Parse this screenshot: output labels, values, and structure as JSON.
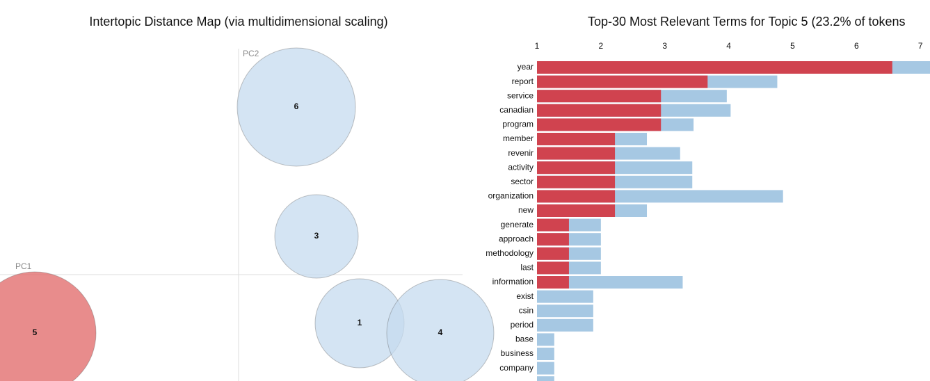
{
  "chart_data": [
    {
      "type": "bubble",
      "title": "Intertopic Distance Map (via multidimensional scaling)",
      "xlabel": "PC1",
      "ylabel": "PC2",
      "labels": [
        "6",
        "3",
        "5",
        "1",
        "4"
      ],
      "x": [
        83,
        112,
        -293,
        174,
        290
      ],
      "values": [
        241,
        55,
        -84,
        -70,
        -84
      ],
      "sizes": [
        85,
        60,
        88,
        64,
        77
      ],
      "colors": [
        "#c6dbef",
        "#c6dbef",
        "#e06666",
        "#c6dbef",
        "#c6dbef"
      ],
      "xlim": [
        -343,
        322
      ],
      "ylim": [
        -153,
        395
      ]
    },
    {
      "type": "hbar",
      "title": "Top-30 Most Relevant Terms for Topic 5 (23.2% of tokens",
      "categories": [
        "year",
        "report",
        "service",
        "canadian",
        "program",
        "member",
        "revenir",
        "activity",
        "sector",
        "organization",
        "new",
        "generate",
        "approach",
        "methodology",
        "last",
        "information",
        "exist",
        "csin",
        "period",
        "base",
        "business",
        "company",
        null
      ],
      "series": [
        {
          "color": "#a6c8e3",
          "values": [
            7.3,
            4.76,
            3.97,
            4.03,
            3.45,
            2.72,
            3.24,
            3.43,
            3.43,
            4.85,
            2.72,
            2.0,
            2.0,
            2.0,
            2.0,
            3.28,
            1.88,
            1.88,
            1.88,
            1.27,
            1.27,
            1.27,
            1.27
          ]
        },
        {
          "color": "#d0434f",
          "values": [
            6.56,
            3.67,
            2.94,
            2.94,
            2.94,
            2.22,
            2.22,
            2.22,
            2.22,
            2.22,
            2.22,
            1.5,
            1.5,
            1.5,
            1.5,
            1.5,
            null,
            null,
            null,
            null,
            null,
            null,
            null
          ]
        }
      ],
      "xlim": [
        1,
        7.15
      ],
      "xticks": [
        1,
        2,
        3,
        4,
        5,
        6,
        7
      ]
    }
  ]
}
